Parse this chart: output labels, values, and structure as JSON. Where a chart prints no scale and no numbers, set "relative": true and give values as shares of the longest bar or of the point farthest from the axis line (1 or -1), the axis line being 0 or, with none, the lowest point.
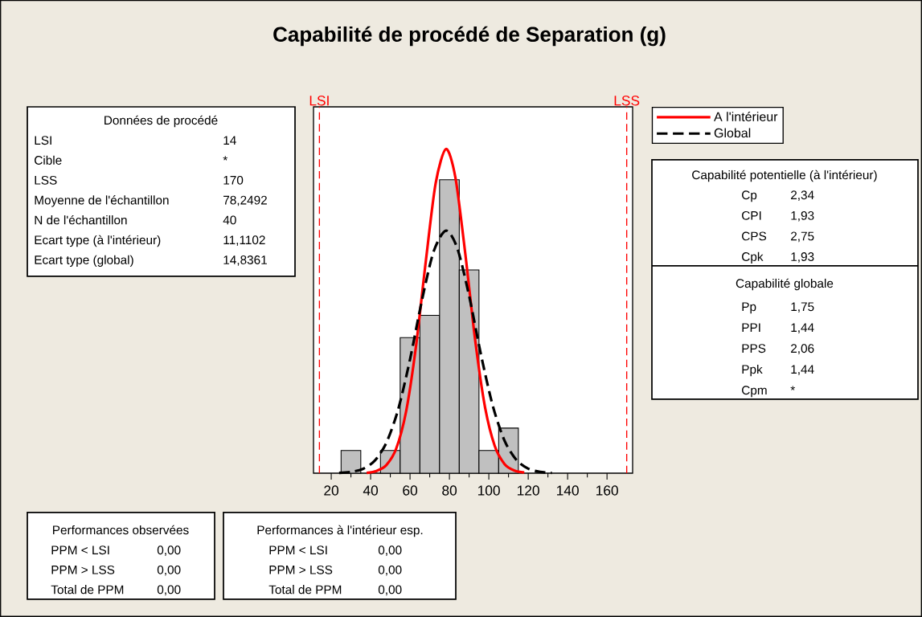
{
  "chart_data": {
    "type": "histogram",
    "title": "Capabilité de procédé de Separation (g)",
    "relative": true,
    "bins": [
      25,
      35,
      45,
      55,
      65,
      75,
      85,
      95,
      105,
      115
    ],
    "values": [
      0.07,
      0,
      0.07,
      0.418,
      0.487,
      0.905,
      0.627,
      0.07,
      0.139
    ],
    "color": "#c0c0c0",
    "series": [
      {
        "name": "A l'intérieur",
        "type": "line",
        "color": "#ff0000",
        "line_style": "solid",
        "x": [
          38,
          43,
          48,
          53,
          58,
          63,
          68,
          73,
          78.25,
          83,
          88,
          93,
          98,
          103,
          108,
          113,
          118
        ],
        "values": [
          0.001,
          0.007,
          0.025,
          0.076,
          0.19,
          0.39,
          0.653,
          0.894,
          1,
          0.913,
          0.68,
          0.414,
          0.206,
          0.084,
          0.028,
          0.008,
          0.002
        ]
      },
      {
        "name": "Global",
        "type": "line",
        "color": "#000000",
        "line_style": "dashed",
        "x": [
          24,
          30,
          36,
          42,
          48,
          54,
          60,
          66,
          72,
          78.25,
          84,
          90,
          96,
          102,
          108,
          114,
          120,
          126,
          132
        ],
        "values": [
          0.001,
          0.004,
          0.013,
          0.038,
          0.094,
          0.197,
          0.351,
          0.532,
          0.684,
          0.748,
          0.694,
          0.547,
          0.366,
          0.208,
          0.1,
          0.041,
          0.014,
          0.004,
          0.001
        ]
      }
    ],
    "xlim": [
      11,
      173
    ],
    "xticks": [
      20,
      40,
      60,
      80,
      100,
      120,
      140,
      160
    ],
    "ref_lines": [
      {
        "axis": "x",
        "value": 14,
        "label": "LSI",
        "color": "#ff0000",
        "line_style": "dashed"
      },
      {
        "axis": "x",
        "value": 170,
        "label": "LSS",
        "color": "#ff0000",
        "line_style": "dashed"
      }
    ],
    "legend": "top right",
    "annotations": [
      "Données de procédé",
      "LSI",
      "14",
      "Cible",
      "*",
      "LSS",
      "170",
      "Moyenne de l'échantillon",
      "78,2492",
      "N de l'échantillon",
      "40",
      "Ecart type (à l'intérieur)",
      "11,1102",
      "Ecart type (global)",
      "14,8361",
      "Capabilité potentielle (à l'intérieur)",
      "Cp",
      "2,34",
      "CPI",
      "1,93",
      "CPS",
      "2,75",
      "Cpk",
      "1,93",
      "Capabilité globale",
      "Pp",
      "1,75",
      "PPI",
      "1,44",
      "PPS",
      "2,06",
      "Ppk",
      "1,44",
      "Cpm",
      "*",
      "Performances observées",
      "PPM < LSI",
      "0,00",
      "PPM > LSS",
      "0,00",
      "Total de PPM",
      "0,00",
      "Performances à l'intérieur esp.",
      "PPM < LSI",
      "0,00",
      "PPM > LSS",
      "0,00",
      "Total de PPM",
      "0,00"
    ]
  }
}
